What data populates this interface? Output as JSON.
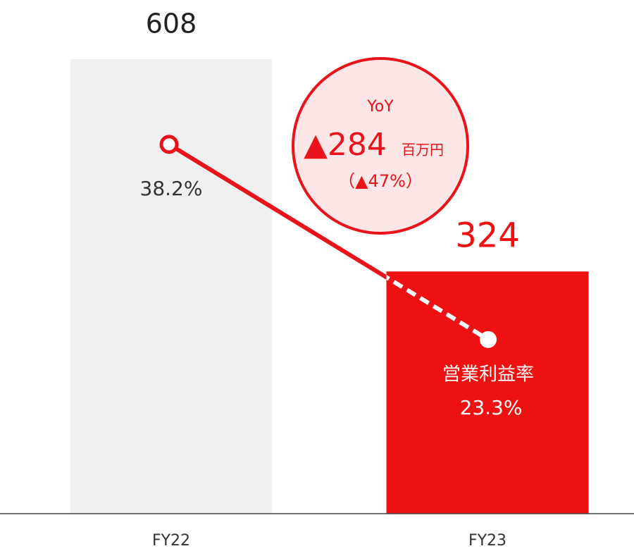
{
  "chart_data": {
    "type": "bar",
    "categories": [
      "FY22",
      "FY23"
    ],
    "series": [
      {
        "type": "bar",
        "values": [
          608,
          324
        ],
        "colors": [
          "#f0f0f0",
          "#ee1111"
        ],
        "label_colors": [
          "#222222",
          "#ee1111"
        ]
      },
      {
        "type": "line",
        "name": "営業利益率",
        "axis": "y2",
        "values": [
          38.2,
          23.3
        ],
        "value_labels": [
          "38.2%",
          "23.3%"
        ],
        "color": "#e8131b",
        "label_colors": [
          "#333333",
          "#ffffff"
        ]
      }
    ],
    "annotation": {
      "title": "YoY",
      "change_label": "▲284",
      "unit": "百万円",
      "percent_label": "（▲47%）"
    }
  }
}
